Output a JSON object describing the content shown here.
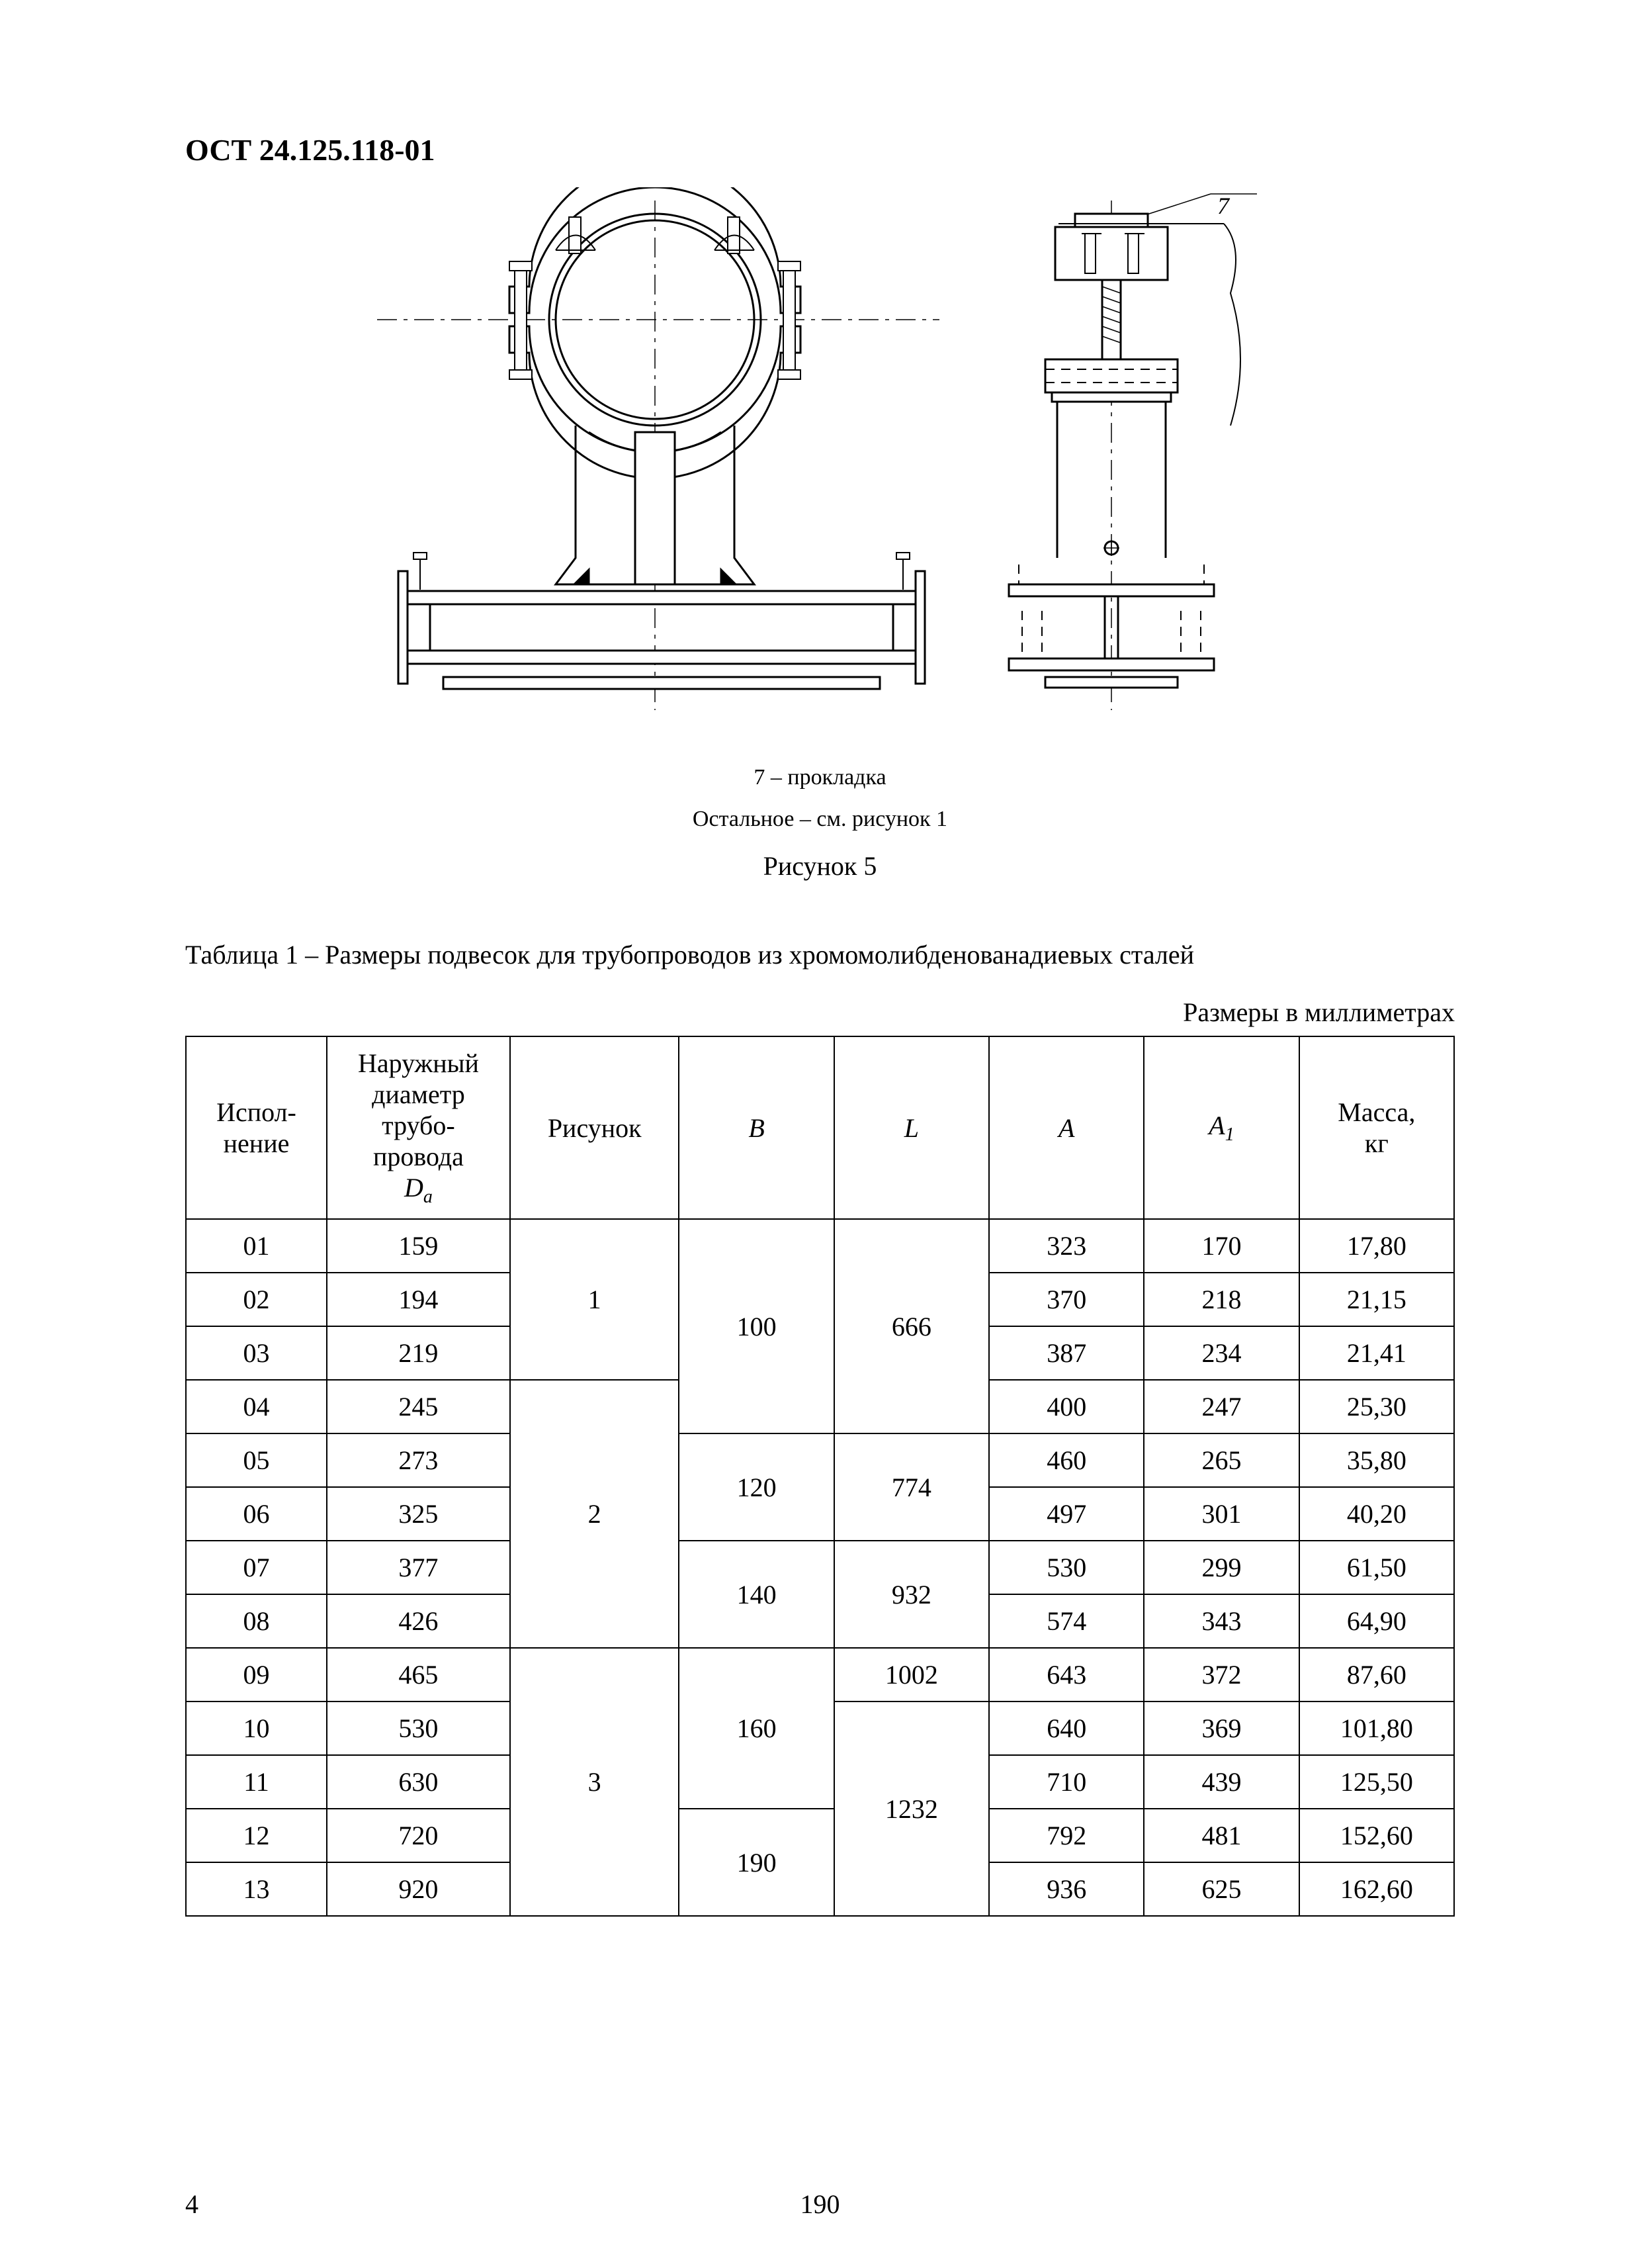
{
  "document": {
    "code": "ОСТ 24.125.118-01",
    "page_left": "4",
    "page_center": "190"
  },
  "figure": {
    "callout_label": "7",
    "legend_line1": "7 – прокладка",
    "legend_line2": "Остальное – см. рисунок 1",
    "caption": "Рисунок  5",
    "stroke_color": "#000000",
    "fill_color": "#ffffff",
    "line_width_thin": 2,
    "line_width_thick": 3
  },
  "table": {
    "title": "Таблица 1 – Размеры подвесок для трубопроводов из хромомолибденованадиевых сталей",
    "units_note": "Размеры в миллиметрах",
    "border_color": "#000000",
    "columns": [
      {
        "key": "ispol",
        "label_lines": [
          "Испол-",
          "нение"
        ],
        "width_pct": 10
      },
      {
        "key": "Da",
        "label_lines": [
          "Наружный",
          "диаметр",
          "трубо-",
          "провода"
        ],
        "symbol": "D",
        "subscript": "a",
        "width_pct": 13
      },
      {
        "key": "fig",
        "label_lines": [
          "Рисунок"
        ],
        "width_pct": 12
      },
      {
        "key": "B",
        "symbol": "B",
        "width_pct": 11
      },
      {
        "key": "L",
        "symbol": "L",
        "width_pct": 11
      },
      {
        "key": "A",
        "symbol": "A",
        "width_pct": 11
      },
      {
        "key": "A1",
        "symbol": "A",
        "subscript": "1",
        "width_pct": 11
      },
      {
        "key": "mass",
        "label_lines": [
          "Масса,",
          "кг"
        ],
        "width_pct": 11
      }
    ],
    "fig_groups": [
      {
        "value": "1",
        "rowspan": 3
      },
      {
        "value": "2",
        "rowspan": 5
      },
      {
        "value": "3",
        "rowspan": 5
      }
    ],
    "B_groups": [
      {
        "value": "100",
        "rowspan": 4
      },
      {
        "value": "120",
        "rowspan": 2
      },
      {
        "value": "140",
        "rowspan": 2
      },
      {
        "value": "160",
        "rowspan": 3
      },
      {
        "value": "190",
        "rowspan": 2
      }
    ],
    "L_groups": [
      {
        "value": "666",
        "rowspan": 4
      },
      {
        "value": "774",
        "rowspan": 2
      },
      {
        "value": "932",
        "rowspan": 2
      },
      {
        "value": "1002",
        "rowspan": 1
      },
      {
        "value": "1232",
        "rowspan": 4
      }
    ],
    "rows": [
      {
        "ispol": "01",
        "Da": "159",
        "A": "323",
        "A1": "170",
        "mass": "17,80"
      },
      {
        "ispol": "02",
        "Da": "194",
        "A": "370",
        "A1": "218",
        "mass": "21,15"
      },
      {
        "ispol": "03",
        "Da": "219",
        "A": "387",
        "A1": "234",
        "mass": "21,41"
      },
      {
        "ispol": "04",
        "Da": "245",
        "A": "400",
        "A1": "247",
        "mass": "25,30"
      },
      {
        "ispol": "05",
        "Da": "273",
        "A": "460",
        "A1": "265",
        "mass": "35,80"
      },
      {
        "ispol": "06",
        "Da": "325",
        "A": "497",
        "A1": "301",
        "mass": "40,20"
      },
      {
        "ispol": "07",
        "Da": "377",
        "A": "530",
        "A1": "299",
        "mass": "61,50"
      },
      {
        "ispol": "08",
        "Da": "426",
        "A": "574",
        "A1": "343",
        "mass": "64,90"
      },
      {
        "ispol": "09",
        "Da": "465",
        "A": "643",
        "A1": "372",
        "mass": "87,60"
      },
      {
        "ispol": "10",
        "Da": "530",
        "A": "640",
        "A1": "369",
        "mass": "101,80"
      },
      {
        "ispol": "11",
        "Da": "630",
        "A": "710",
        "A1": "439",
        "mass": "125,50"
      },
      {
        "ispol": "12",
        "Da": "720",
        "A": "792",
        "A1": "481",
        "mass": "152,60"
      },
      {
        "ispol": "13",
        "Da": "920",
        "A": "936",
        "A1": "625",
        "mass": "162,60"
      }
    ]
  }
}
